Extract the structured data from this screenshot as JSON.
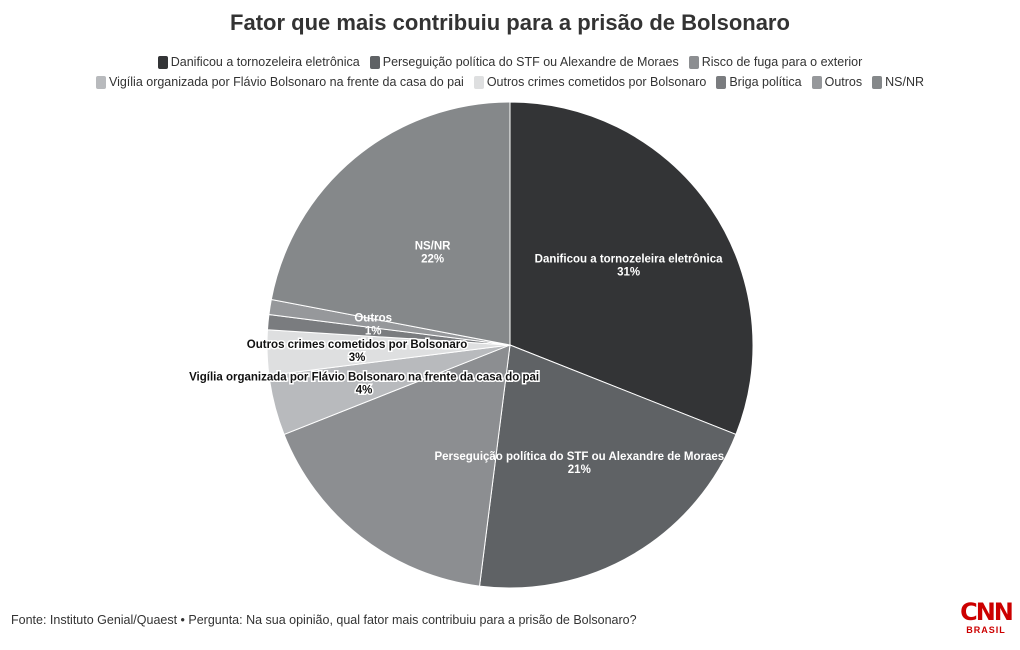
{
  "chart_data": {
    "type": "pie",
    "title": "Fator que mais contribuiu para a prisão de Bolsonaro",
    "slices": [
      {
        "label": "Danificou a tornozeleira eletrônica",
        "value": 31,
        "value_label": "31%",
        "color": "#333436",
        "label_color": "#ffffff",
        "show_label": true
      },
      {
        "label": "Perseguição política do STF ou Alexandre de Moraes",
        "value": 21,
        "value_label": "21%",
        "color": "#5f6265",
        "label_color": "#ffffff",
        "show_label": true
      },
      {
        "label": "Risco de fuga para o exterior",
        "value": 17,
        "value_label": "17%",
        "color": "#8c8e91",
        "label_color": "#ffffff",
        "show_label": false
      },
      {
        "label": "Vigília organizada por Flávio Bolsonaro na frente da casa do pai",
        "value": 4,
        "value_label": "4%",
        "color": "#b8babd",
        "label_color": "#111111",
        "show_label": true
      },
      {
        "label": "Outros crimes cometidos por Bolsonaro",
        "value": 3,
        "value_label": "3%",
        "color": "#dedfe0",
        "label_color": "#111111",
        "show_label": true
      },
      {
        "label": "Briga política",
        "value": 1,
        "value_label": "1%",
        "color": "#7a7c7f",
        "label_color": "#ffffff",
        "show_label": false
      },
      {
        "label": "Outros",
        "value": 1,
        "value_label": "1%",
        "color": "#96989b",
        "label_color": "#ffffff",
        "show_label": true
      },
      {
        "label": "NS/NR",
        "value": 22,
        "value_label": "22%",
        "color": "#85888a",
        "label_color": "#ffffff",
        "show_label": true
      }
    ],
    "legend_position": "top"
  },
  "footer": {
    "source": "Fonte: Instituto Genial/Quaest • Pergunta: Na sua opinião, qual fator mais contribuiu para a prisão de Bolsonaro?",
    "logo_main": "CNN",
    "logo_sub": "BRASIL"
  }
}
